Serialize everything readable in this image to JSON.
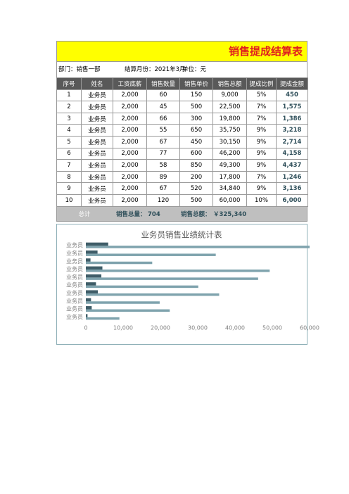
{
  "header": {
    "title": "销售提成结算表",
    "department": "部门：销售一部",
    "month": "结算月份：2021年3月",
    "unit": "单位：元"
  },
  "table": {
    "columns": [
      "序号",
      "姓名",
      "工资底薪",
      "销售数量",
      "销售单价",
      "销售总额",
      "提成比例",
      "提成金额"
    ],
    "rows": [
      [
        "1",
        "业务员",
        "2,000",
        "60",
        "150",
        "9,000",
        "5%",
        "450"
      ],
      [
        "2",
        "业务员",
        "2,000",
        "45",
        "500",
        "22,500",
        "7%",
        "1,575"
      ],
      [
        "3",
        "业务员",
        "2,000",
        "66",
        "300",
        "19,800",
        "7%",
        "1,386"
      ],
      [
        "4",
        "业务员",
        "2,000",
        "55",
        "650",
        "35,750",
        "9%",
        "3,218"
      ],
      [
        "5",
        "业务员",
        "2,000",
        "67",
        "450",
        "30,150",
        "9%",
        "2,714"
      ],
      [
        "6",
        "业务员",
        "2,000",
        "77",
        "600",
        "46,200",
        "9%",
        "4,158"
      ],
      [
        "7",
        "业务员",
        "2,000",
        "58",
        "850",
        "49,300",
        "9%",
        "4,437"
      ],
      [
        "8",
        "业务员",
        "2,000",
        "89",
        "200",
        "17,800",
        "7%",
        "1,246"
      ],
      [
        "9",
        "业务员",
        "2,000",
        "67",
        "520",
        "34,840",
        "9%",
        "3,136"
      ],
      [
        "10",
        "业务员",
        "2,000",
        "120",
        "500",
        "60,000",
        "10%",
        "6,000"
      ]
    ]
  },
  "total": {
    "label": "总计",
    "qty_label": "销售总量：",
    "qty": "704",
    "amount_label": "销售总额：",
    "amount": "￥325,340"
  },
  "chart_data": {
    "type": "bar",
    "orientation": "horizontal",
    "title": "业务员销售业绩统计表",
    "categories": [
      "业务员",
      "业务员",
      "业务员",
      "业务员",
      "业务员",
      "业务员",
      "业务员",
      "业务员",
      "业务员",
      "业务员"
    ],
    "series": [
      {
        "color": "#7fa3ad",
        "values": [
          9000,
          22500,
          19800,
          35750,
          30150,
          46200,
          49300,
          17800,
          34840,
          60000
        ]
      },
      {
        "color": "#3f5d68",
        "values": [
          450,
          1575,
          1386,
          3218,
          2714,
          4158,
          4437,
          1246,
          3136,
          6000
        ]
      }
    ],
    "xlim": [
      0,
      60000
    ],
    "xticks": [
      0,
      {
        "value": 10000,
        "label": "10,000"
      },
      {
        "value": 20000,
        "label": "20,000"
      },
      {
        "value": 30000,
        "label": "30,000"
      },
      {
        "value": 40000,
        "label": "40,000"
      },
      {
        "value": 50000,
        "label": "50,000"
      },
      {
        "value": 60000,
        "label": "60,000"
      }
    ]
  }
}
